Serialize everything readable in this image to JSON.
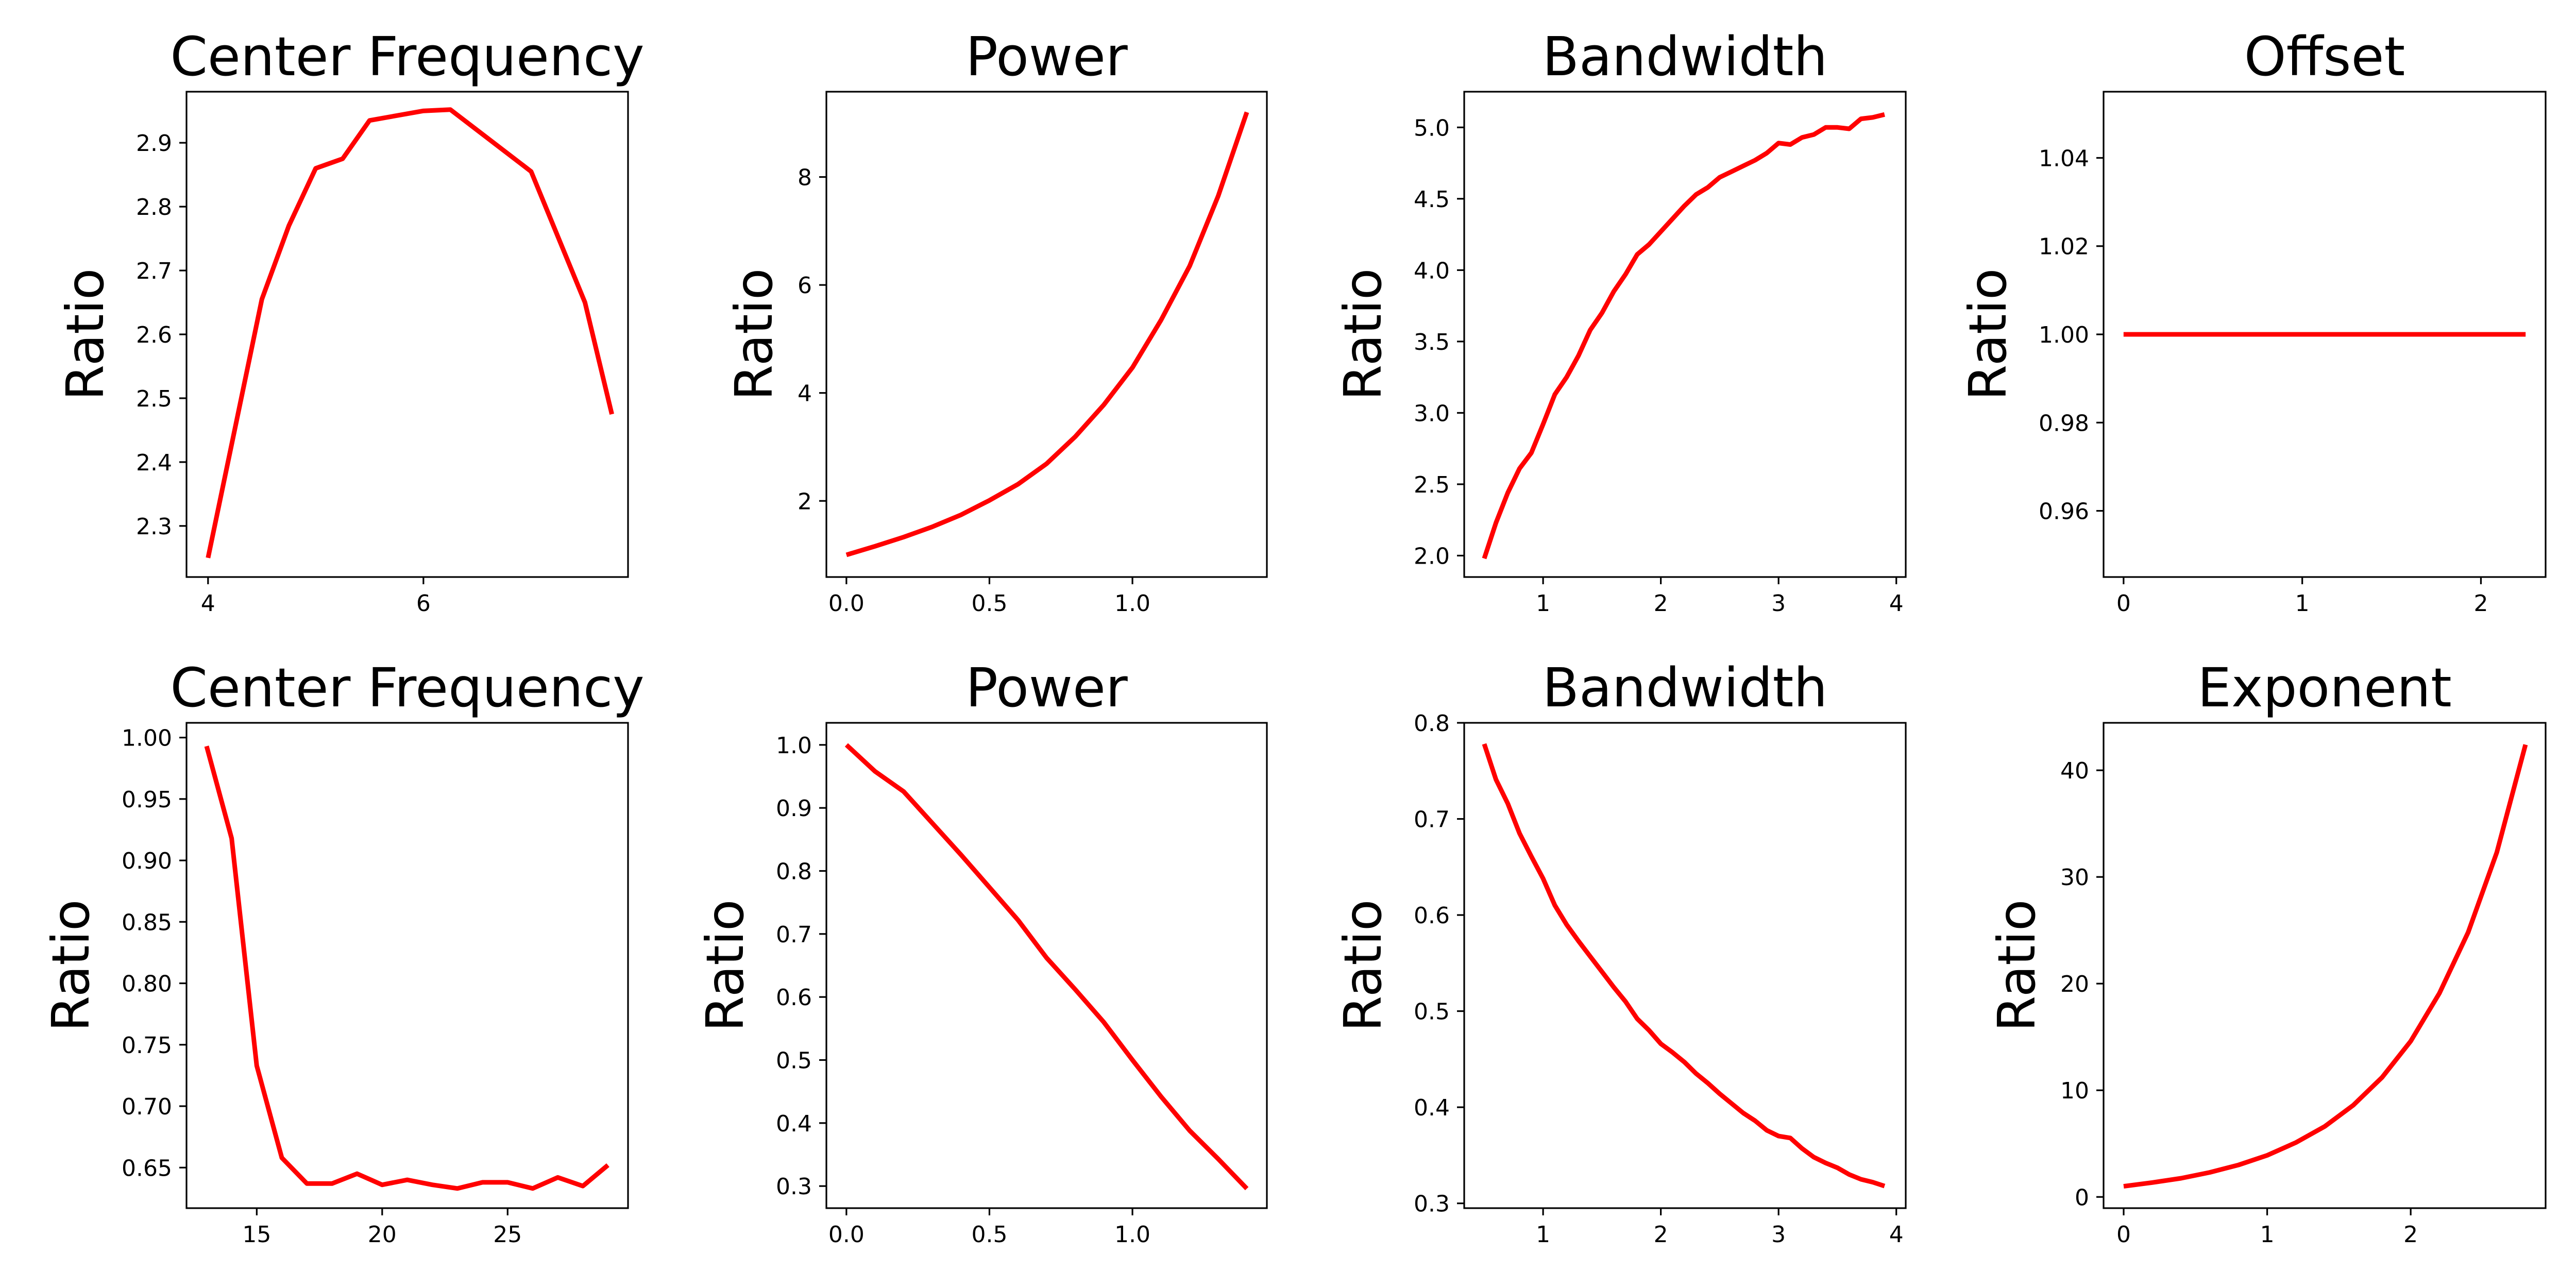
{
  "chart_data": [
    {
      "type": "line",
      "title": "Center Frequency",
      "xlabel": "",
      "ylabel": "Ratio",
      "xlim": [
        3.8,
        7.9
      ],
      "ylim": [
        2.22,
        2.98
      ],
      "xticks": [
        4,
        6
      ],
      "yticks": [
        2.3,
        2.4,
        2.5,
        2.6,
        2.7,
        2.8,
        2.9
      ],
      "x": [
        4.0,
        4.5,
        4.75,
        5.0,
        5.25,
        5.5,
        6.0,
        6.25,
        7.0,
        7.5,
        7.75
      ],
      "y": [
        2.25,
        2.655,
        2.77,
        2.86,
        2.875,
        2.935,
        2.95,
        2.952,
        2.855,
        2.65,
        2.475
      ],
      "color": "#ff0000",
      "grid": false
    },
    {
      "type": "line",
      "title": "Power",
      "xlabel": "",
      "ylabel": "Ratio",
      "xlim": [
        -0.07,
        1.47
      ],
      "ylim": [
        0.59,
        9.58
      ],
      "xticks": [
        0.0,
        0.5,
        1.0
      ],
      "yticks": [
        2,
        4,
        6,
        8
      ],
      "x": [
        0.0,
        0.1,
        0.2,
        0.3,
        0.4,
        0.5,
        0.6,
        0.7,
        0.8,
        0.9,
        1.0,
        1.1,
        1.2,
        1.3,
        1.4
      ],
      "y": [
        1.0,
        1.16,
        1.33,
        1.52,
        1.74,
        2.01,
        2.31,
        2.69,
        3.19,
        3.78,
        4.47,
        5.35,
        6.35,
        7.65,
        9.2
      ],
      "color": "#ff0000",
      "grid": false
    },
    {
      "type": "line",
      "title": "Bandwidth",
      "xlabel": "",
      "ylabel": "Ratio",
      "xlim": [
        0.33,
        4.08
      ],
      "ylim": [
        1.85,
        5.25
      ],
      "xticks": [
        1,
        2,
        3,
        4
      ],
      "yticks": [
        2.0,
        2.5,
        3.0,
        3.5,
        4.0,
        4.5,
        5.0
      ],
      "x": [
        0.5,
        0.6,
        0.7,
        0.8,
        0.9,
        1.0,
        1.1,
        1.2,
        1.3,
        1.4,
        1.5,
        1.6,
        1.7,
        1.8,
        1.9,
        2.0,
        2.1,
        2.2,
        2.3,
        2.4,
        2.5,
        2.6,
        2.7,
        2.8,
        2.9,
        3.0,
        3.1,
        3.2,
        3.3,
        3.4,
        3.5,
        3.6,
        3.7,
        3.8,
        3.9
      ],
      "y": [
        1.98,
        2.23,
        2.44,
        2.61,
        2.72,
        2.92,
        3.13,
        3.25,
        3.4,
        3.58,
        3.7,
        3.85,
        3.97,
        4.11,
        4.18,
        4.27,
        4.36,
        4.45,
        4.53,
        4.58,
        4.65,
        4.69,
        4.73,
        4.77,
        4.82,
        4.89,
        4.88,
        4.93,
        4.95,
        5.0,
        5.0,
        4.99,
        5.06,
        5.07,
        5.09
      ],
      "color": "#ff0000",
      "grid": false
    },
    {
      "type": "line",
      "title": "Offset",
      "xlabel": "",
      "ylabel": "Ratio",
      "xlim": [
        -0.112,
        2.362
      ],
      "ylim": [
        0.945,
        1.055
      ],
      "xticks": [
        0,
        1,
        2
      ],
      "yticks": [
        0.96,
        0.98,
        1.0,
        1.02,
        1.04
      ],
      "x": [
        0.0,
        2.25
      ],
      "y": [
        1.0,
        1.0
      ],
      "color": "#ff0000",
      "grid": false
    },
    {
      "type": "line",
      "title": "Center Frequency",
      "xlabel": "",
      "ylabel": "Ratio",
      "xlim": [
        12.2,
        29.8
      ],
      "ylim": [
        0.617,
        1.012
      ],
      "xticks": [
        15,
        20,
        25
      ],
      "yticks": [
        0.65,
        0.7,
        0.75,
        0.8,
        0.85,
        0.9,
        0.95,
        1.0
      ],
      "x": [
        13,
        14,
        15,
        16,
        17,
        18,
        19,
        20,
        21,
        22,
        23,
        24,
        25,
        26,
        27,
        28,
        29
      ],
      "y": [
        0.993,
        0.918,
        0.733,
        0.658,
        0.637,
        0.637,
        0.645,
        0.636,
        0.64,
        0.636,
        0.633,
        0.638,
        0.638,
        0.633,
        0.642,
        0.635,
        0.652
      ],
      "color": "#ff0000",
      "grid": false
    },
    {
      "type": "line",
      "title": "Power",
      "xlabel": "",
      "ylabel": "Ratio",
      "xlim": [
        -0.07,
        1.47
      ],
      "ylim": [
        0.265,
        1.035
      ],
      "xticks": [
        0.0,
        0.5,
        1.0
      ],
      "yticks": [
        0.3,
        0.4,
        0.5,
        0.6,
        0.7,
        0.8,
        0.9,
        1.0
      ],
      "x": [
        0.0,
        0.1,
        0.2,
        0.3,
        0.4,
        0.5,
        0.6,
        0.7,
        0.8,
        0.9,
        1.0,
        1.1,
        1.2,
        1.3,
        1.4
      ],
      "y": [
        1.0,
        0.958,
        0.926,
        0.876,
        0.826,
        0.774,
        0.722,
        0.662,
        0.612,
        0.56,
        0.5,
        0.442,
        0.388,
        0.343,
        0.296
      ],
      "color": "#ff0000",
      "grid": false
    },
    {
      "type": "line",
      "title": "Bandwidth",
      "xlabel": "",
      "ylabel": "Ratio",
      "xlim": [
        0.33,
        4.08
      ],
      "ylim": [
        0.295,
        0.8
      ],
      "xticks": [
        1,
        2,
        3,
        4
      ],
      "yticks": [
        0.3,
        0.4,
        0.5,
        0.6,
        0.7,
        0.8
      ],
      "x": [
        0.5,
        0.6,
        0.7,
        0.8,
        0.9,
        1.0,
        1.1,
        1.2,
        1.3,
        1.4,
        1.5,
        1.6,
        1.7,
        1.8,
        1.9,
        2.0,
        2.1,
        2.2,
        2.3,
        2.4,
        2.5,
        2.6,
        2.7,
        2.8,
        2.9,
        3.0,
        3.1,
        3.2,
        3.3,
        3.4,
        3.5,
        3.6,
        3.7,
        3.8,
        3.9
      ],
      "y": [
        0.778,
        0.741,
        0.716,
        0.685,
        0.661,
        0.638,
        0.61,
        0.59,
        0.573,
        0.557,
        0.541,
        0.525,
        0.51,
        0.492,
        0.48,
        0.466,
        0.457,
        0.447,
        0.435,
        0.425,
        0.414,
        0.404,
        0.394,
        0.386,
        0.376,
        0.37,
        0.368,
        0.357,
        0.348,
        0.342,
        0.337,
        0.33,
        0.325,
        0.322,
        0.318
      ],
      "color": "#ff0000",
      "grid": false
    },
    {
      "type": "line",
      "title": "Exponent",
      "xlabel": "",
      "ylabel": "Ratio",
      "xlim": [
        -0.14,
        2.94
      ],
      "ylim": [
        -1.05,
        44.45
      ],
      "xticks": [
        0,
        1,
        2
      ],
      "yticks": [
        0,
        10,
        20,
        30,
        40
      ],
      "x": [
        0.0,
        0.2,
        0.4,
        0.6,
        0.8,
        1.0,
        1.2,
        1.4,
        1.6,
        1.8,
        2.0,
        2.2,
        2.4,
        2.6,
        2.8
      ],
      "y": [
        1.0,
        1.35,
        1.75,
        2.3,
        3.0,
        3.9,
        5.1,
        6.6,
        8.6,
        11.2,
        14.6,
        19.1,
        24.8,
        32.3,
        42.4
      ],
      "color": "#ff0000",
      "grid": false
    }
  ]
}
